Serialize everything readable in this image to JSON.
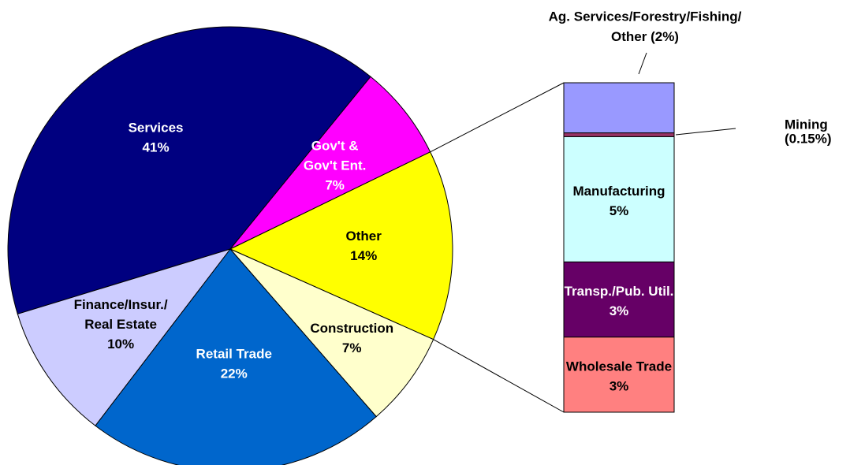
{
  "chart_data": {
    "type": "pie",
    "categories": [
      [
        "Services"
      ],
      [
        "Gov't &",
        "Gov't Ent."
      ],
      [
        "Other"
      ],
      [
        "Construction"
      ],
      [
        "Retail Trade"
      ],
      [
        "Finance/Insur./",
        "Real Estate"
      ]
    ],
    "values": [
      41,
      7,
      14,
      7,
      22,
      10
    ],
    "value_labels": [
      "41%",
      "7%",
      "14%",
      "7%",
      "22%",
      "10%"
    ],
    "colors": [
      "#000080",
      "#ff00ff",
      "#ffff00",
      "#ffffcc",
      "#0066cc",
      "#ccccff"
    ],
    "label_colors": [
      "#ffffff",
      "#ffffff",
      "#000000",
      "#000000",
      "#ffffff",
      "#000000"
    ],
    "breakdown": {
      "type": "stacked_bar",
      "categories": [
        [
          "Wholesale Trade"
        ],
        [
          "Transp./Pub. Util."
        ],
        [
          "Manufacturing"
        ],
        [
          "Mining"
        ],
        [
          "Ag. Services/Forestry/Fishing/",
          "Other"
        ]
      ],
      "values": [
        3,
        3,
        5,
        0.15,
        2
      ],
      "value_labels": [
        "3%",
        "3%",
        "5%",
        "(0.15%)",
        "(2%)"
      ],
      "colors": [
        "#ff8080",
        "#660066",
        "#ccffff",
        "#993366",
        "#9999ff"
      ],
      "label_colors": [
        "#000000",
        "#ffffff",
        "#000000",
        "#000000",
        "#000000"
      ]
    }
  }
}
